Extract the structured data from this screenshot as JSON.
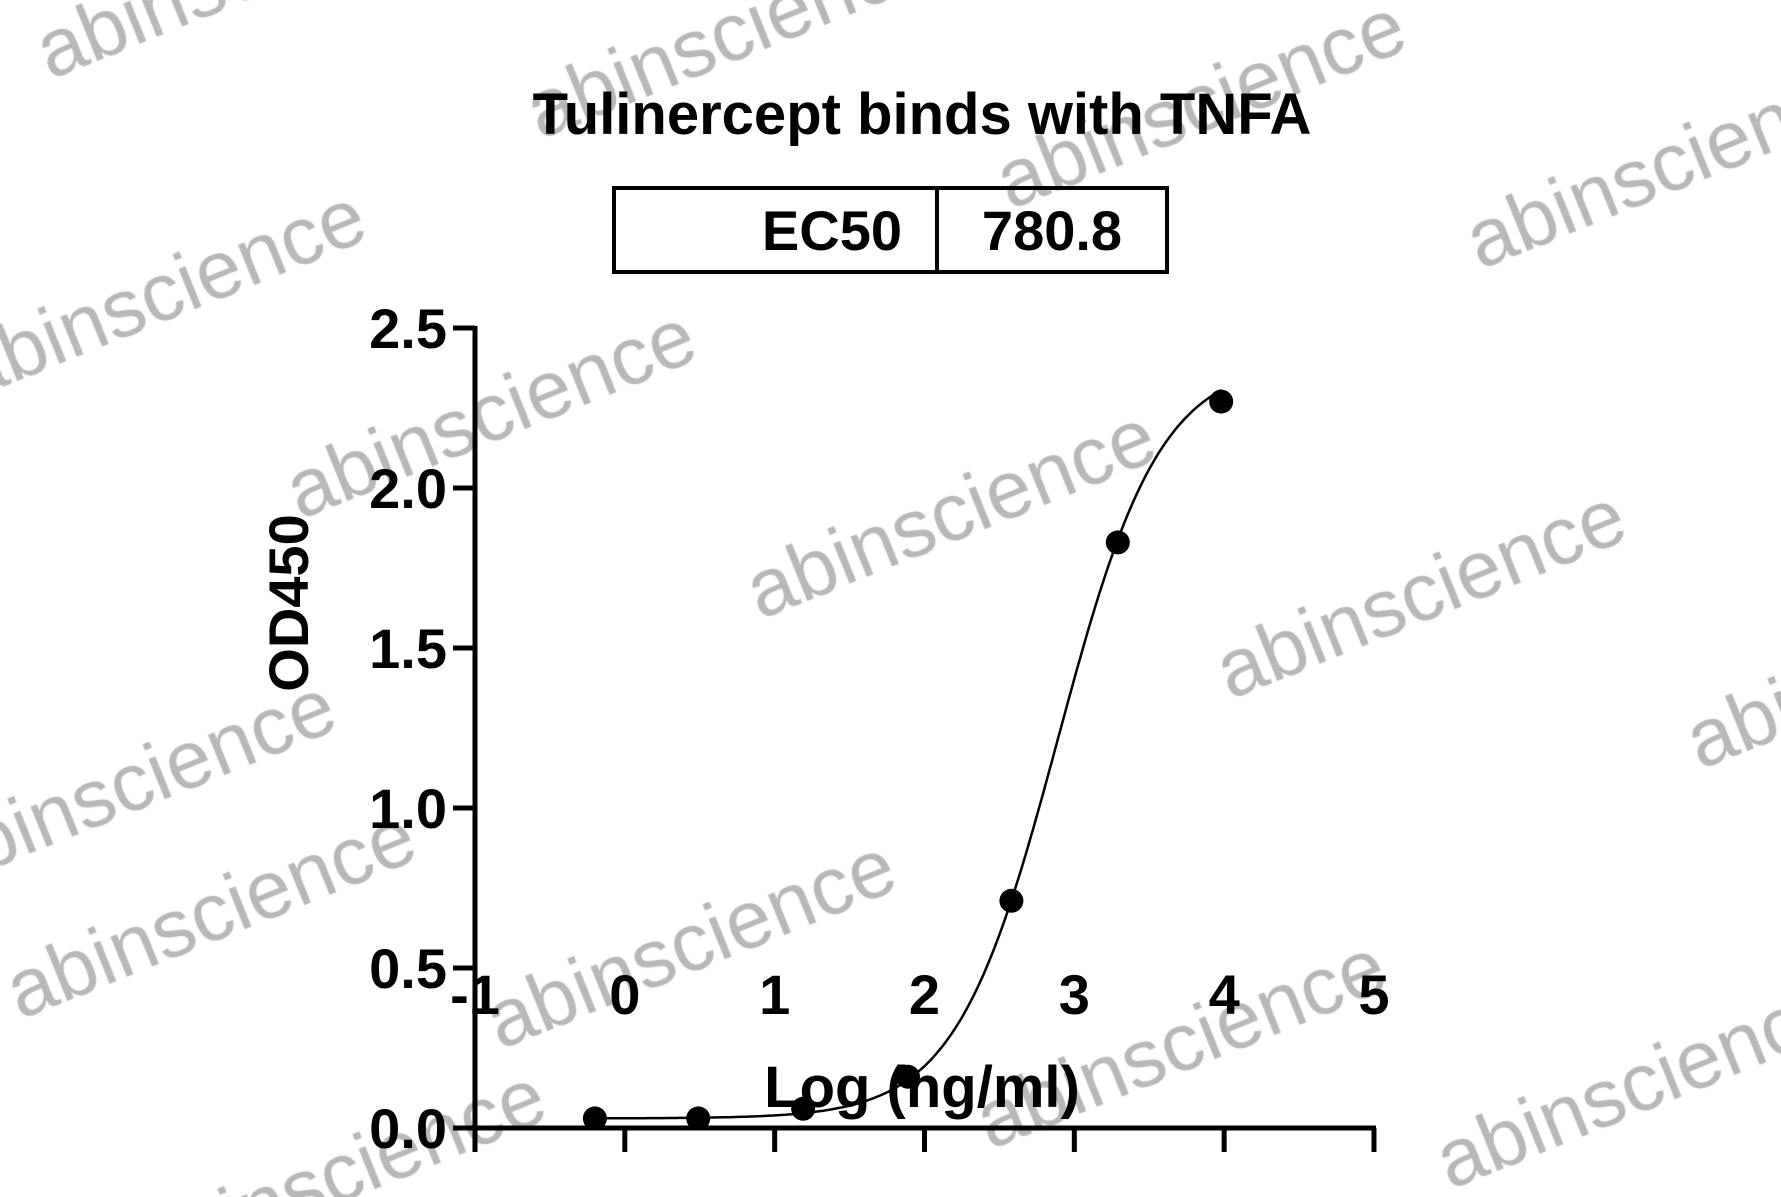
{
  "chart_data": {
    "type": "scatter",
    "title": "Tulinercept binds with TNFA",
    "table": {
      "label": "EC50",
      "value": "780.8"
    },
    "xlabel": "Log (ng/ml)",
    "ylabel": "OD450",
    "xlim": [
      -1,
      5
    ],
    "ylim": [
      0,
      2.5
    ],
    "xticks": [
      "-1",
      "0",
      "1",
      "2",
      "3",
      "4",
      "5"
    ],
    "yticks": [
      "0.0",
      "0.5",
      "1.0",
      "1.5",
      "2.0",
      "2.5"
    ],
    "grid": false,
    "points": {
      "x": [
        -0.2,
        0.49,
        1.19,
        1.89,
        2.58,
        3.29,
        3.98
      ],
      "y": [
        0.03,
        0.03,
        0.06,
        0.16,
        0.71,
        1.83,
        2.27
      ]
    },
    "fit": {
      "model": "4PL",
      "bottom": 0.03,
      "top": 2.4,
      "logEC50": 2.89,
      "hill": 1.27
    },
    "colors": {
      "marks": "#000000",
      "watermark": "#b8b8b8"
    }
  },
  "watermark": "abinscience"
}
